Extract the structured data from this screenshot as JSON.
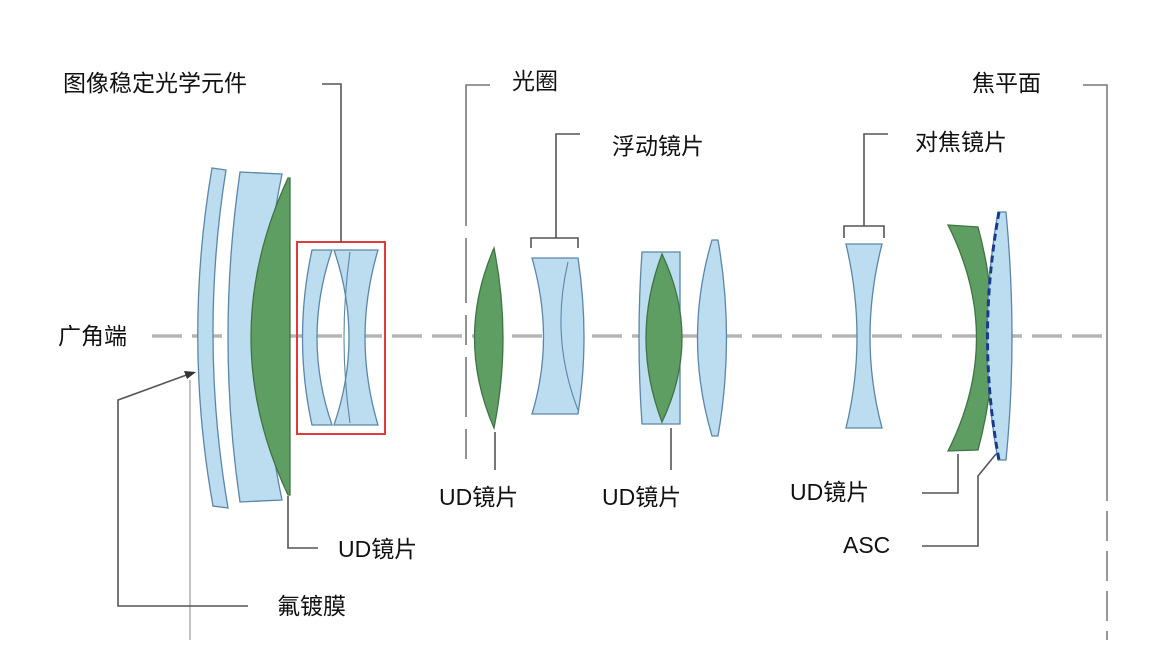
{
  "labels": {
    "image_stabilizer": "图像稳定光学元件",
    "aperture": "光圈",
    "focal_plane": "焦平面",
    "floating_lens": "浮动镜片",
    "focus_lens": "对焦镜片",
    "wide_end": "广角端",
    "ud_lens_1": "UD镜片",
    "ud_lens_2": "UD镜片",
    "ud_lens_3": "UD镜片",
    "ud_lens_4": "UD镜片",
    "asc": "ASC",
    "fluorine_coating": "氟镀膜"
  },
  "colors": {
    "ud_element": "#5f9e63",
    "standard_element": "#bcdcf0",
    "stabilizer_box": "#e03a3a",
    "asc_coating": "#1a3a8c",
    "optical_axis": "#b5b5b5"
  }
}
